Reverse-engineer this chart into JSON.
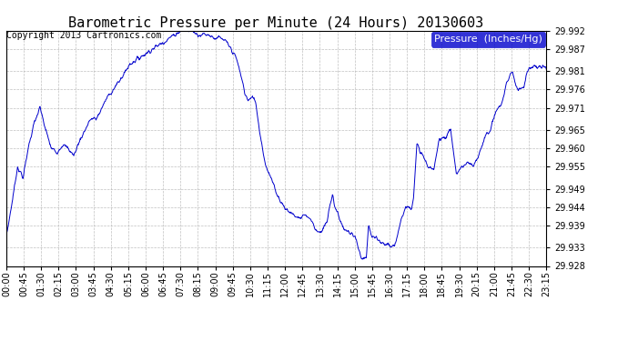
{
  "title": "Barometric Pressure per Minute (24 Hours) 20130603",
  "copyright": "Copyright 2013 Cartronics.com",
  "legend_label": "Pressure  (Inches/Hg)",
  "ylim": [
    29.928,
    29.992
  ],
  "yticks": [
    29.928,
    29.933,
    29.939,
    29.944,
    29.949,
    29.955,
    29.96,
    29.965,
    29.971,
    29.976,
    29.981,
    29.987,
    29.992
  ],
  "xtick_labels": [
    "00:00",
    "00:45",
    "01:30",
    "02:15",
    "03:00",
    "03:45",
    "04:30",
    "05:15",
    "06:00",
    "06:45",
    "07:30",
    "08:15",
    "09:00",
    "09:45",
    "10:30",
    "11:15",
    "12:00",
    "12:45",
    "13:30",
    "14:15",
    "15:00",
    "15:45",
    "16:30",
    "17:15",
    "18:00",
    "18:45",
    "19:30",
    "20:15",
    "21:00",
    "21:45",
    "22:30",
    "23:15"
  ],
  "line_color": "#0000cc",
  "background_color": "#ffffff",
  "grid_color": "#b0b0b0",
  "title_fontsize": 11,
  "tick_fontsize": 7,
  "legend_fontsize": 8,
  "copyright_fontsize": 7,
  "waypoints_t": [
    0.0,
    0.25,
    0.5,
    0.75,
    1.0,
    1.25,
    1.5,
    1.75,
    2.0,
    2.25,
    2.5,
    2.75,
    3.0,
    3.25,
    3.5,
    3.75,
    4.0,
    4.5,
    5.0,
    5.5,
    6.0,
    6.5,
    7.0,
    7.25,
    7.5,
    7.75,
    8.0,
    8.25,
    8.5,
    8.75,
    9.0,
    9.25,
    9.5,
    9.75,
    10.0,
    10.25,
    10.5,
    10.6,
    10.75,
    11.0,
    11.1,
    11.25,
    11.5,
    11.75,
    12.0,
    12.25,
    12.5,
    12.75,
    13.0,
    13.25,
    13.5,
    13.75,
    14.0,
    14.25,
    14.5,
    14.6,
    14.75,
    15.0,
    15.25,
    15.5,
    15.6,
    15.75,
    16.0,
    16.1,
    16.25,
    16.5,
    16.75,
    17.0,
    17.1,
    17.25,
    17.5,
    17.75,
    18.0,
    18.1,
    18.25,
    18.5,
    18.75,
    19.0,
    19.25,
    19.5,
    19.75,
    20.0,
    20.25,
    20.5,
    20.75,
    21.0,
    21.25,
    21.5,
    21.75,
    22.0,
    22.25,
    22.5,
    22.6,
    22.75,
    23.0,
    23.1,
    23.25,
    24.0
  ],
  "waypoints_p": [
    29.936,
    29.945,
    29.955,
    29.952,
    29.961,
    29.967,
    29.971,
    29.965,
    29.96,
    29.959,
    29.961,
    29.96,
    29.958,
    29.962,
    29.965,
    29.968,
    29.968,
    29.974,
    29.978,
    29.983,
    29.985,
    29.987,
    29.989,
    29.99,
    29.991,
    29.992,
    29.992,
    29.992,
    29.991,
    29.991,
    29.991,
    29.99,
    29.99,
    29.989,
    29.987,
    29.984,
    29.978,
    29.975,
    29.973,
    29.974,
    29.972,
    29.965,
    29.956,
    29.952,
    29.948,
    29.945,
    29.943,
    29.942,
    29.941,
    29.942,
    29.941,
    29.938,
    29.937,
    29.94,
    29.948,
    29.944,
    29.942,
    29.938,
    29.937,
    29.936,
    29.934,
    29.93,
    29.93,
    29.939,
    29.936,
    29.935,
    29.934,
    29.934,
    29.933,
    29.933,
    29.94,
    29.944,
    29.944,
    29.947,
    29.961,
    29.958,
    29.955,
    29.954,
    29.963,
    29.963,
    29.965,
    29.953,
    29.955,
    29.956,
    29.955,
    29.958,
    29.963,
    29.965,
    29.97,
    29.972,
    29.978,
    29.981,
    29.978,
    29.976,
    29.977,
    29.98,
    29.982,
    29.982
  ]
}
